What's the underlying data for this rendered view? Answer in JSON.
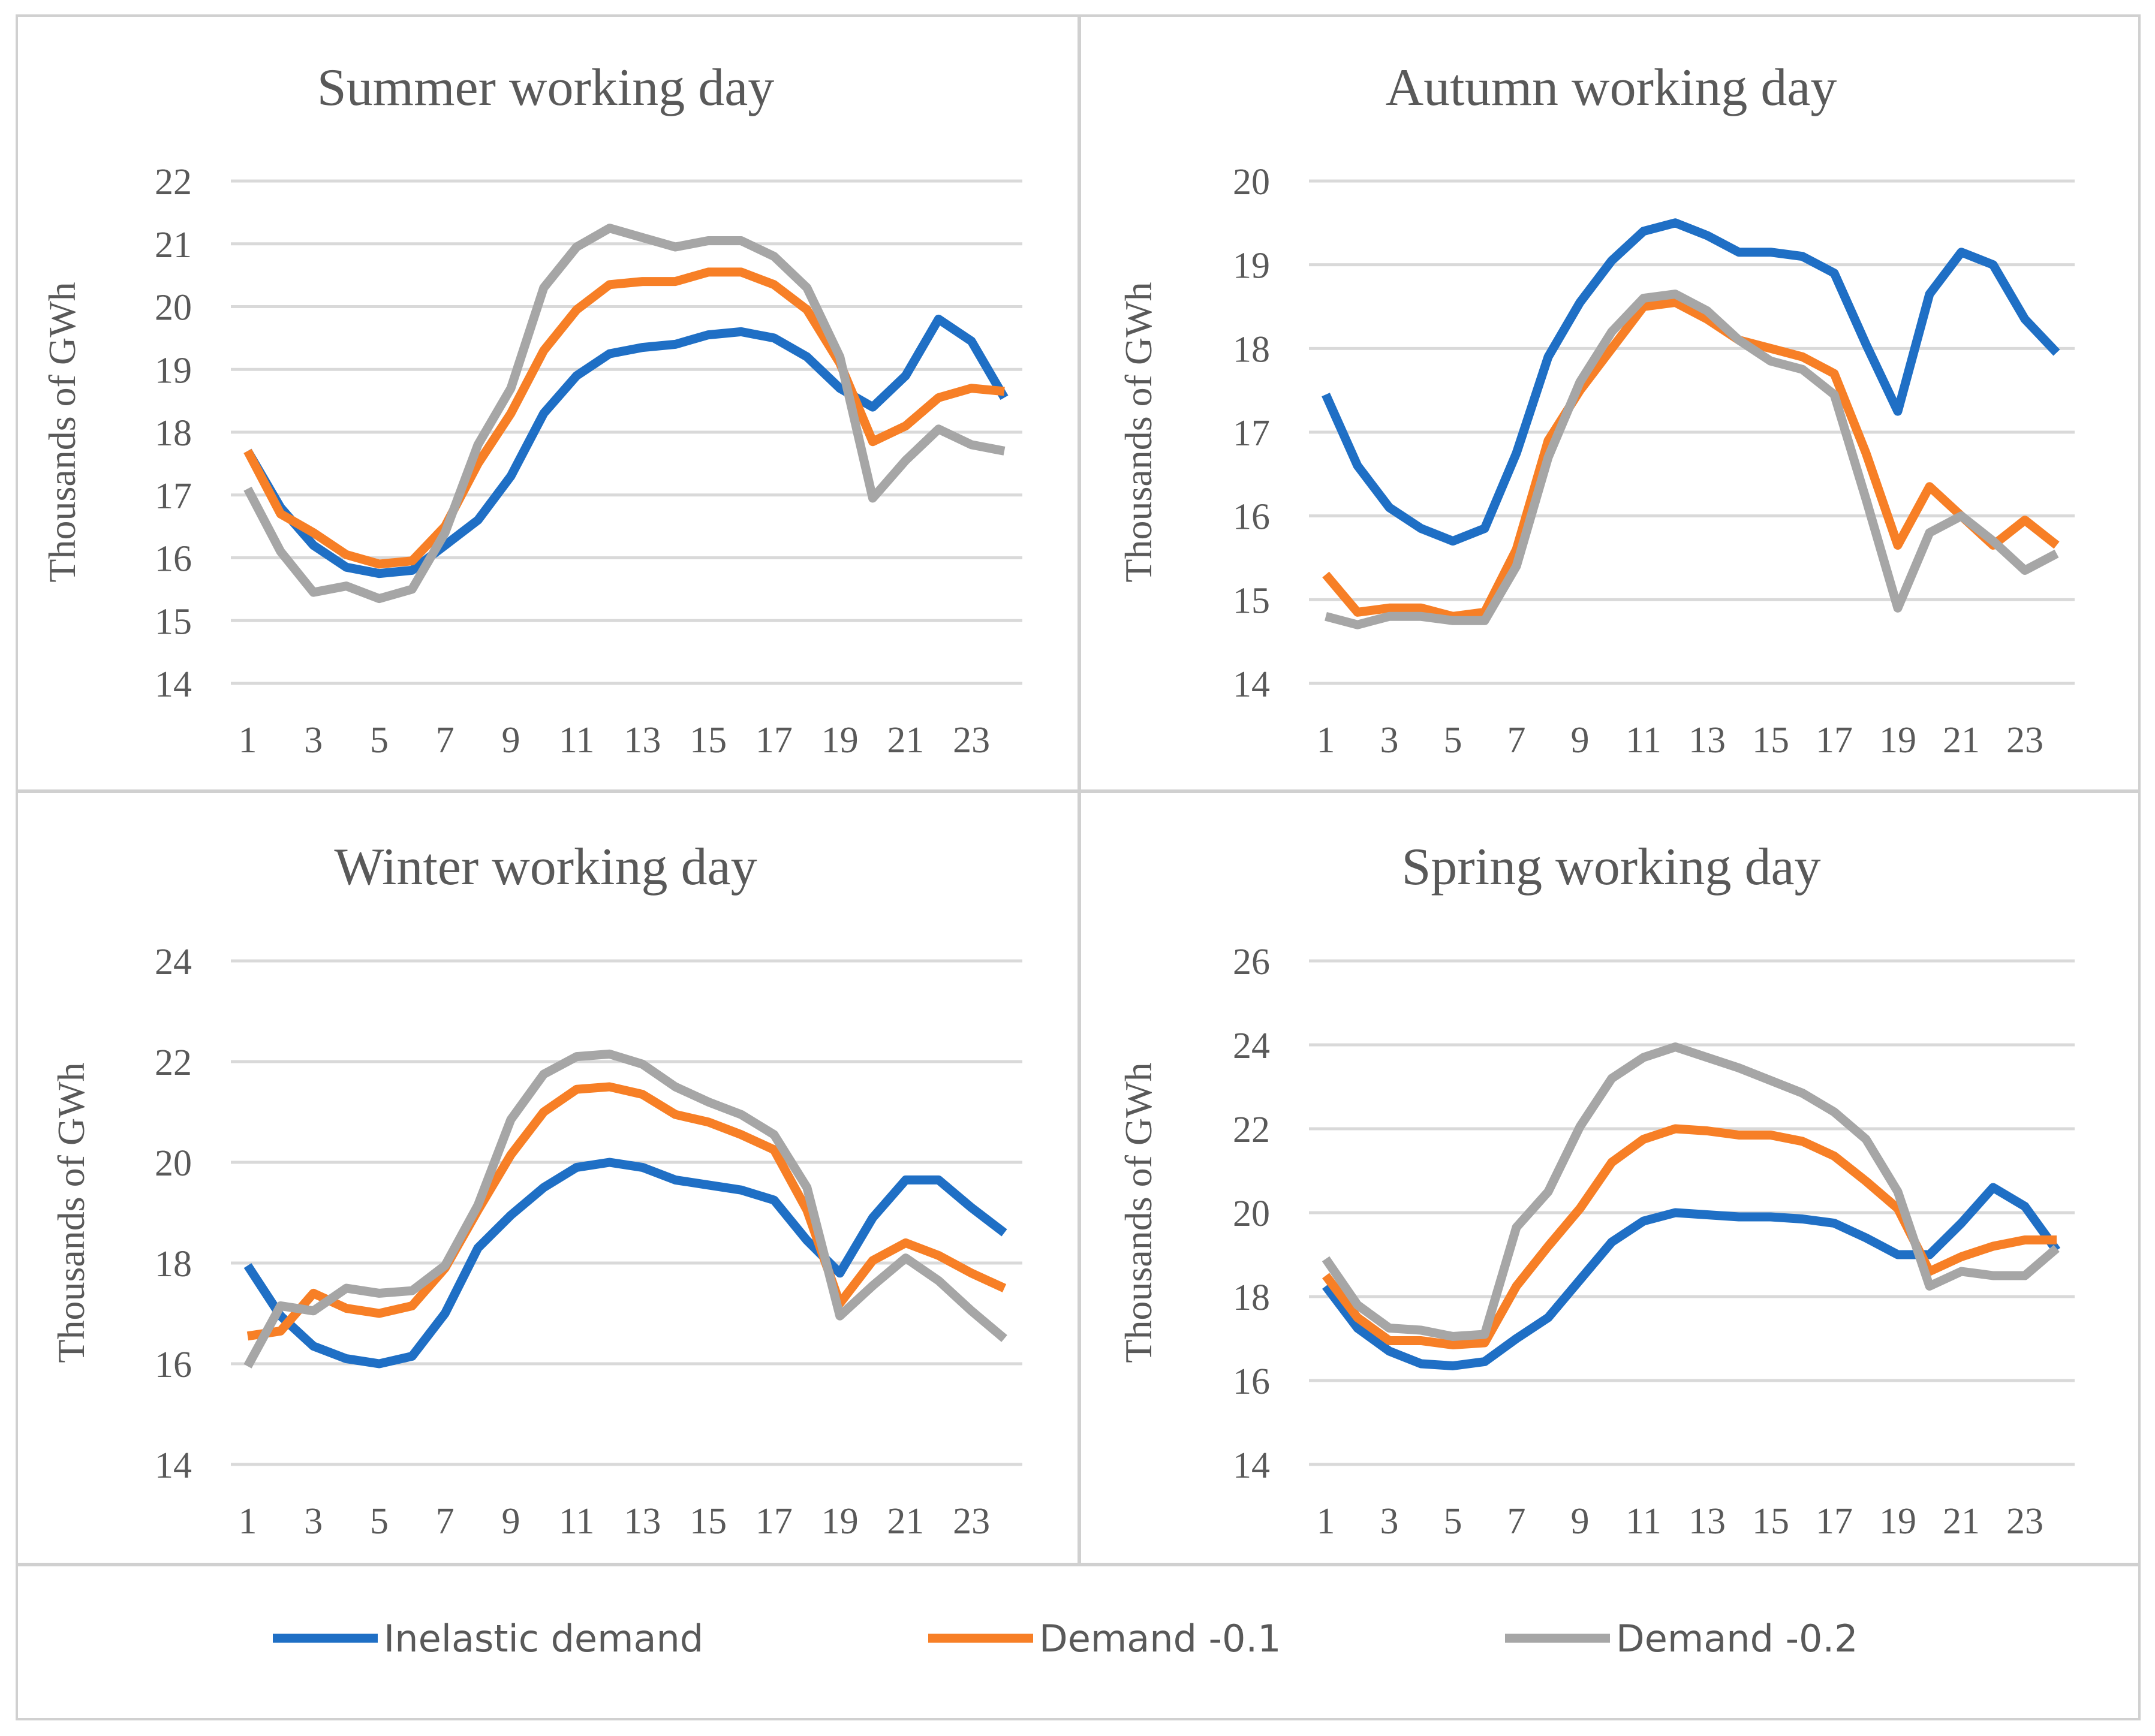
{
  "colors": {
    "inelastic": "#1f6fc5",
    "d01": "#f77f26",
    "d02": "#a6a6a6"
  },
  "legend": [
    {
      "key": "inelastic",
      "label": "Inelastic demand"
    },
    {
      "key": "d01",
      "label": "Demand -0.1"
    },
    {
      "key": "d02",
      "label": "Demand -0.2"
    }
  ],
  "chart_data": [
    {
      "type": "line",
      "title": "Summer working day",
      "ylabel": "Thousands of GWh",
      "xlabel": "",
      "x": [
        1,
        2,
        3,
        4,
        5,
        6,
        7,
        8,
        9,
        10,
        11,
        12,
        13,
        14,
        15,
        16,
        17,
        18,
        19,
        20,
        21,
        22,
        23,
        24
      ],
      "xticks": [
        1,
        3,
        5,
        7,
        9,
        11,
        13,
        15,
        17,
        19,
        21,
        23
      ],
      "ylim": [
        14,
        22
      ],
      "yticks": [
        14,
        15,
        16,
        17,
        18,
        19,
        20,
        21,
        22
      ],
      "series": [
        {
          "name": "Inelastic demand",
          "key": "inelastic",
          "values": [
            17.7,
            16.8,
            16.2,
            15.85,
            15.75,
            15.8,
            16.2,
            16.6,
            17.3,
            18.3,
            18.9,
            19.25,
            19.35,
            19.4,
            19.55,
            19.6,
            19.5,
            19.2,
            18.7,
            18.4,
            18.9,
            19.8,
            19.45,
            18.55
          ]
        },
        {
          "name": "Demand -0.1",
          "key": "d01",
          "values": [
            17.7,
            16.7,
            16.4,
            16.05,
            15.9,
            15.95,
            16.5,
            17.5,
            18.3,
            19.3,
            19.95,
            20.35,
            20.4,
            20.4,
            20.55,
            20.55,
            20.35,
            19.95,
            19.1,
            17.85,
            18.1,
            18.55,
            18.7,
            18.65
          ]
        },
        {
          "name": "Demand -0.2",
          "key": "d02",
          "values": [
            17.1,
            16.1,
            15.45,
            15.55,
            15.35,
            15.5,
            16.4,
            17.8,
            18.7,
            20.3,
            20.95,
            21.25,
            21.1,
            20.95,
            21.05,
            21.05,
            20.8,
            20.3,
            19.2,
            16.95,
            17.55,
            18.05,
            17.8,
            17.7
          ]
        }
      ]
    },
    {
      "type": "line",
      "title": "Autumn working day",
      "ylabel": "Thousands of GWh",
      "xlabel": "",
      "x": [
        1,
        2,
        3,
        4,
        5,
        6,
        7,
        8,
        9,
        10,
        11,
        12,
        13,
        14,
        15,
        16,
        17,
        18,
        19,
        20,
        21,
        22,
        23,
        24
      ],
      "xticks": [
        1,
        3,
        5,
        7,
        9,
        11,
        13,
        15,
        17,
        19,
        21,
        23
      ],
      "ylim": [
        14,
        20
      ],
      "yticks": [
        14,
        15,
        16,
        17,
        18,
        19,
        20
      ],
      "series": [
        {
          "name": "Inelastic demand",
          "key": "inelastic",
          "values": [
            17.45,
            16.6,
            16.1,
            15.85,
            15.7,
            15.85,
            16.75,
            17.9,
            18.55,
            19.05,
            19.4,
            19.5,
            19.35,
            19.15,
            19.15,
            19.1,
            18.9,
            18.05,
            17.25,
            18.65,
            19.15,
            19.0,
            18.35,
            17.95
          ]
        },
        {
          "name": "Demand -0.1",
          "key": "d01",
          "values": [
            15.3,
            14.85,
            14.9,
            14.9,
            14.8,
            14.85,
            15.6,
            16.9,
            17.5,
            18.0,
            18.5,
            18.55,
            18.35,
            18.1,
            18.0,
            17.9,
            17.7,
            16.75,
            15.65,
            16.35,
            16.0,
            15.65,
            15.95,
            15.65
          ]
        },
        {
          "name": "Demand -0.2",
          "key": "d02",
          "values": [
            14.8,
            14.7,
            14.8,
            14.8,
            14.75,
            14.75,
            15.4,
            16.7,
            17.6,
            18.2,
            18.6,
            18.65,
            18.45,
            18.1,
            17.85,
            17.75,
            17.45,
            16.2,
            14.9,
            15.8,
            16.0,
            15.7,
            15.35,
            15.55
          ]
        }
      ]
    },
    {
      "type": "line",
      "title": "Winter working day",
      "ylabel": "Thousands of GWh",
      "xlabel": "",
      "x": [
        1,
        2,
        3,
        4,
        5,
        6,
        7,
        8,
        9,
        10,
        11,
        12,
        13,
        14,
        15,
        16,
        17,
        18,
        19,
        20,
        21,
        22,
        23,
        24
      ],
      "xticks": [
        1,
        3,
        5,
        7,
        9,
        11,
        13,
        15,
        17,
        19,
        21,
        23
      ],
      "ylim": [
        14,
        24
      ],
      "yticks": [
        14,
        16,
        18,
        20,
        22,
        24
      ],
      "series": [
        {
          "name": "Inelastic demand",
          "key": "inelastic",
          "values": [
            17.95,
            16.95,
            16.35,
            16.1,
            16.0,
            16.15,
            17.0,
            18.3,
            18.95,
            19.5,
            19.9,
            20.0,
            19.9,
            19.65,
            19.55,
            19.45,
            19.25,
            18.45,
            17.8,
            18.9,
            19.65,
            19.65,
            19.1,
            18.6
          ]
        },
        {
          "name": "Demand -0.1",
          "key": "d01",
          "values": [
            16.55,
            16.65,
            17.4,
            17.1,
            17.0,
            17.15,
            17.9,
            19.05,
            20.15,
            21.0,
            21.45,
            21.5,
            21.35,
            20.95,
            20.8,
            20.55,
            20.25,
            19.05,
            17.2,
            18.05,
            18.4,
            18.15,
            17.8,
            17.5
          ]
        },
        {
          "name": "Demand -0.2",
          "key": "d02",
          "values": [
            15.95,
            17.15,
            17.05,
            17.5,
            17.4,
            17.45,
            17.95,
            19.15,
            20.85,
            21.75,
            22.1,
            22.15,
            21.95,
            21.5,
            21.2,
            20.95,
            20.55,
            19.5,
            16.95,
            17.55,
            18.1,
            17.65,
            17.05,
            16.5
          ]
        }
      ]
    },
    {
      "type": "line",
      "title": "Spring working day",
      "ylabel": "Thousands of GWh",
      "xlabel": "",
      "x": [
        1,
        2,
        3,
        4,
        5,
        6,
        7,
        8,
        9,
        10,
        11,
        12,
        13,
        14,
        15,
        16,
        17,
        18,
        19,
        20,
        21,
        22,
        23,
        24
      ],
      "xticks": [
        1,
        3,
        5,
        7,
        9,
        11,
        13,
        15,
        17,
        19,
        21,
        23
      ],
      "ylim": [
        14,
        26
      ],
      "yticks": [
        14,
        16,
        18,
        20,
        22,
        24,
        26
      ],
      "series": [
        {
          "name": "Inelastic demand",
          "key": "inelastic",
          "values": [
            18.25,
            17.25,
            16.7,
            16.4,
            16.35,
            16.45,
            17.0,
            17.5,
            18.4,
            19.3,
            19.8,
            20.0,
            19.95,
            19.9,
            19.9,
            19.85,
            19.75,
            19.4,
            19.0,
            19.0,
            19.75,
            20.6,
            20.15,
            19.1
          ]
        },
        {
          "name": "Demand -0.1",
          "key": "d01",
          "values": [
            18.5,
            17.5,
            16.95,
            16.95,
            16.85,
            16.9,
            18.25,
            19.2,
            20.1,
            21.2,
            21.75,
            22.0,
            21.95,
            21.85,
            21.85,
            21.7,
            21.35,
            20.75,
            20.1,
            18.6,
            18.95,
            19.2,
            19.35,
            19.35
          ]
        },
        {
          "name": "Demand -0.2",
          "key": "d02",
          "values": [
            18.9,
            17.8,
            17.25,
            17.2,
            17.05,
            17.1,
            19.65,
            20.5,
            22.05,
            23.2,
            23.7,
            23.95,
            23.7,
            23.45,
            23.15,
            22.85,
            22.4,
            21.75,
            20.5,
            18.25,
            18.6,
            18.5,
            18.5,
            19.15
          ]
        }
      ]
    }
  ]
}
